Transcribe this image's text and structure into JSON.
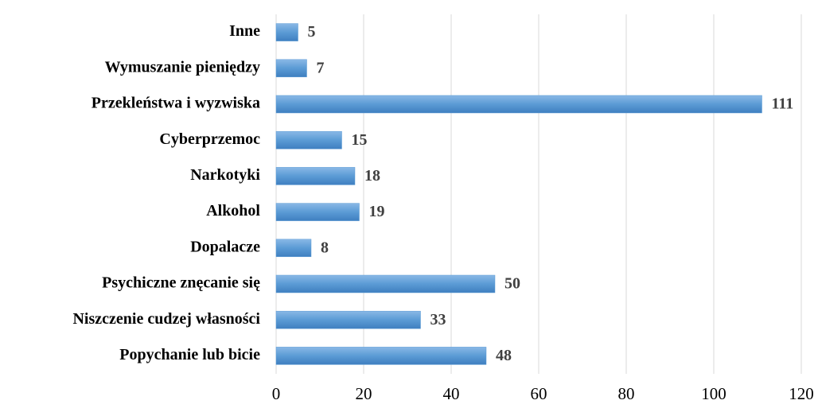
{
  "chart_data": {
    "type": "barh",
    "categories": [
      "Inne",
      "Wymuszanie pieniędzy",
      "Przekleństwa i wyzwiska",
      "Cyberprzemoc",
      "Narkotyki",
      "Alkohol",
      "Dopalacze",
      "Psychiczne znęcanie się",
      "Niszczenie cudzej własności",
      "Popychanie lub bicie"
    ],
    "values": [
      5,
      7,
      111,
      15,
      18,
      19,
      8,
      50,
      33,
      48
    ],
    "color": "#5b9bd5",
    "xlim": [
      0,
      120
    ],
    "xticks": [
      0,
      20,
      40,
      60,
      80,
      100,
      120
    ],
    "grid": true
  }
}
